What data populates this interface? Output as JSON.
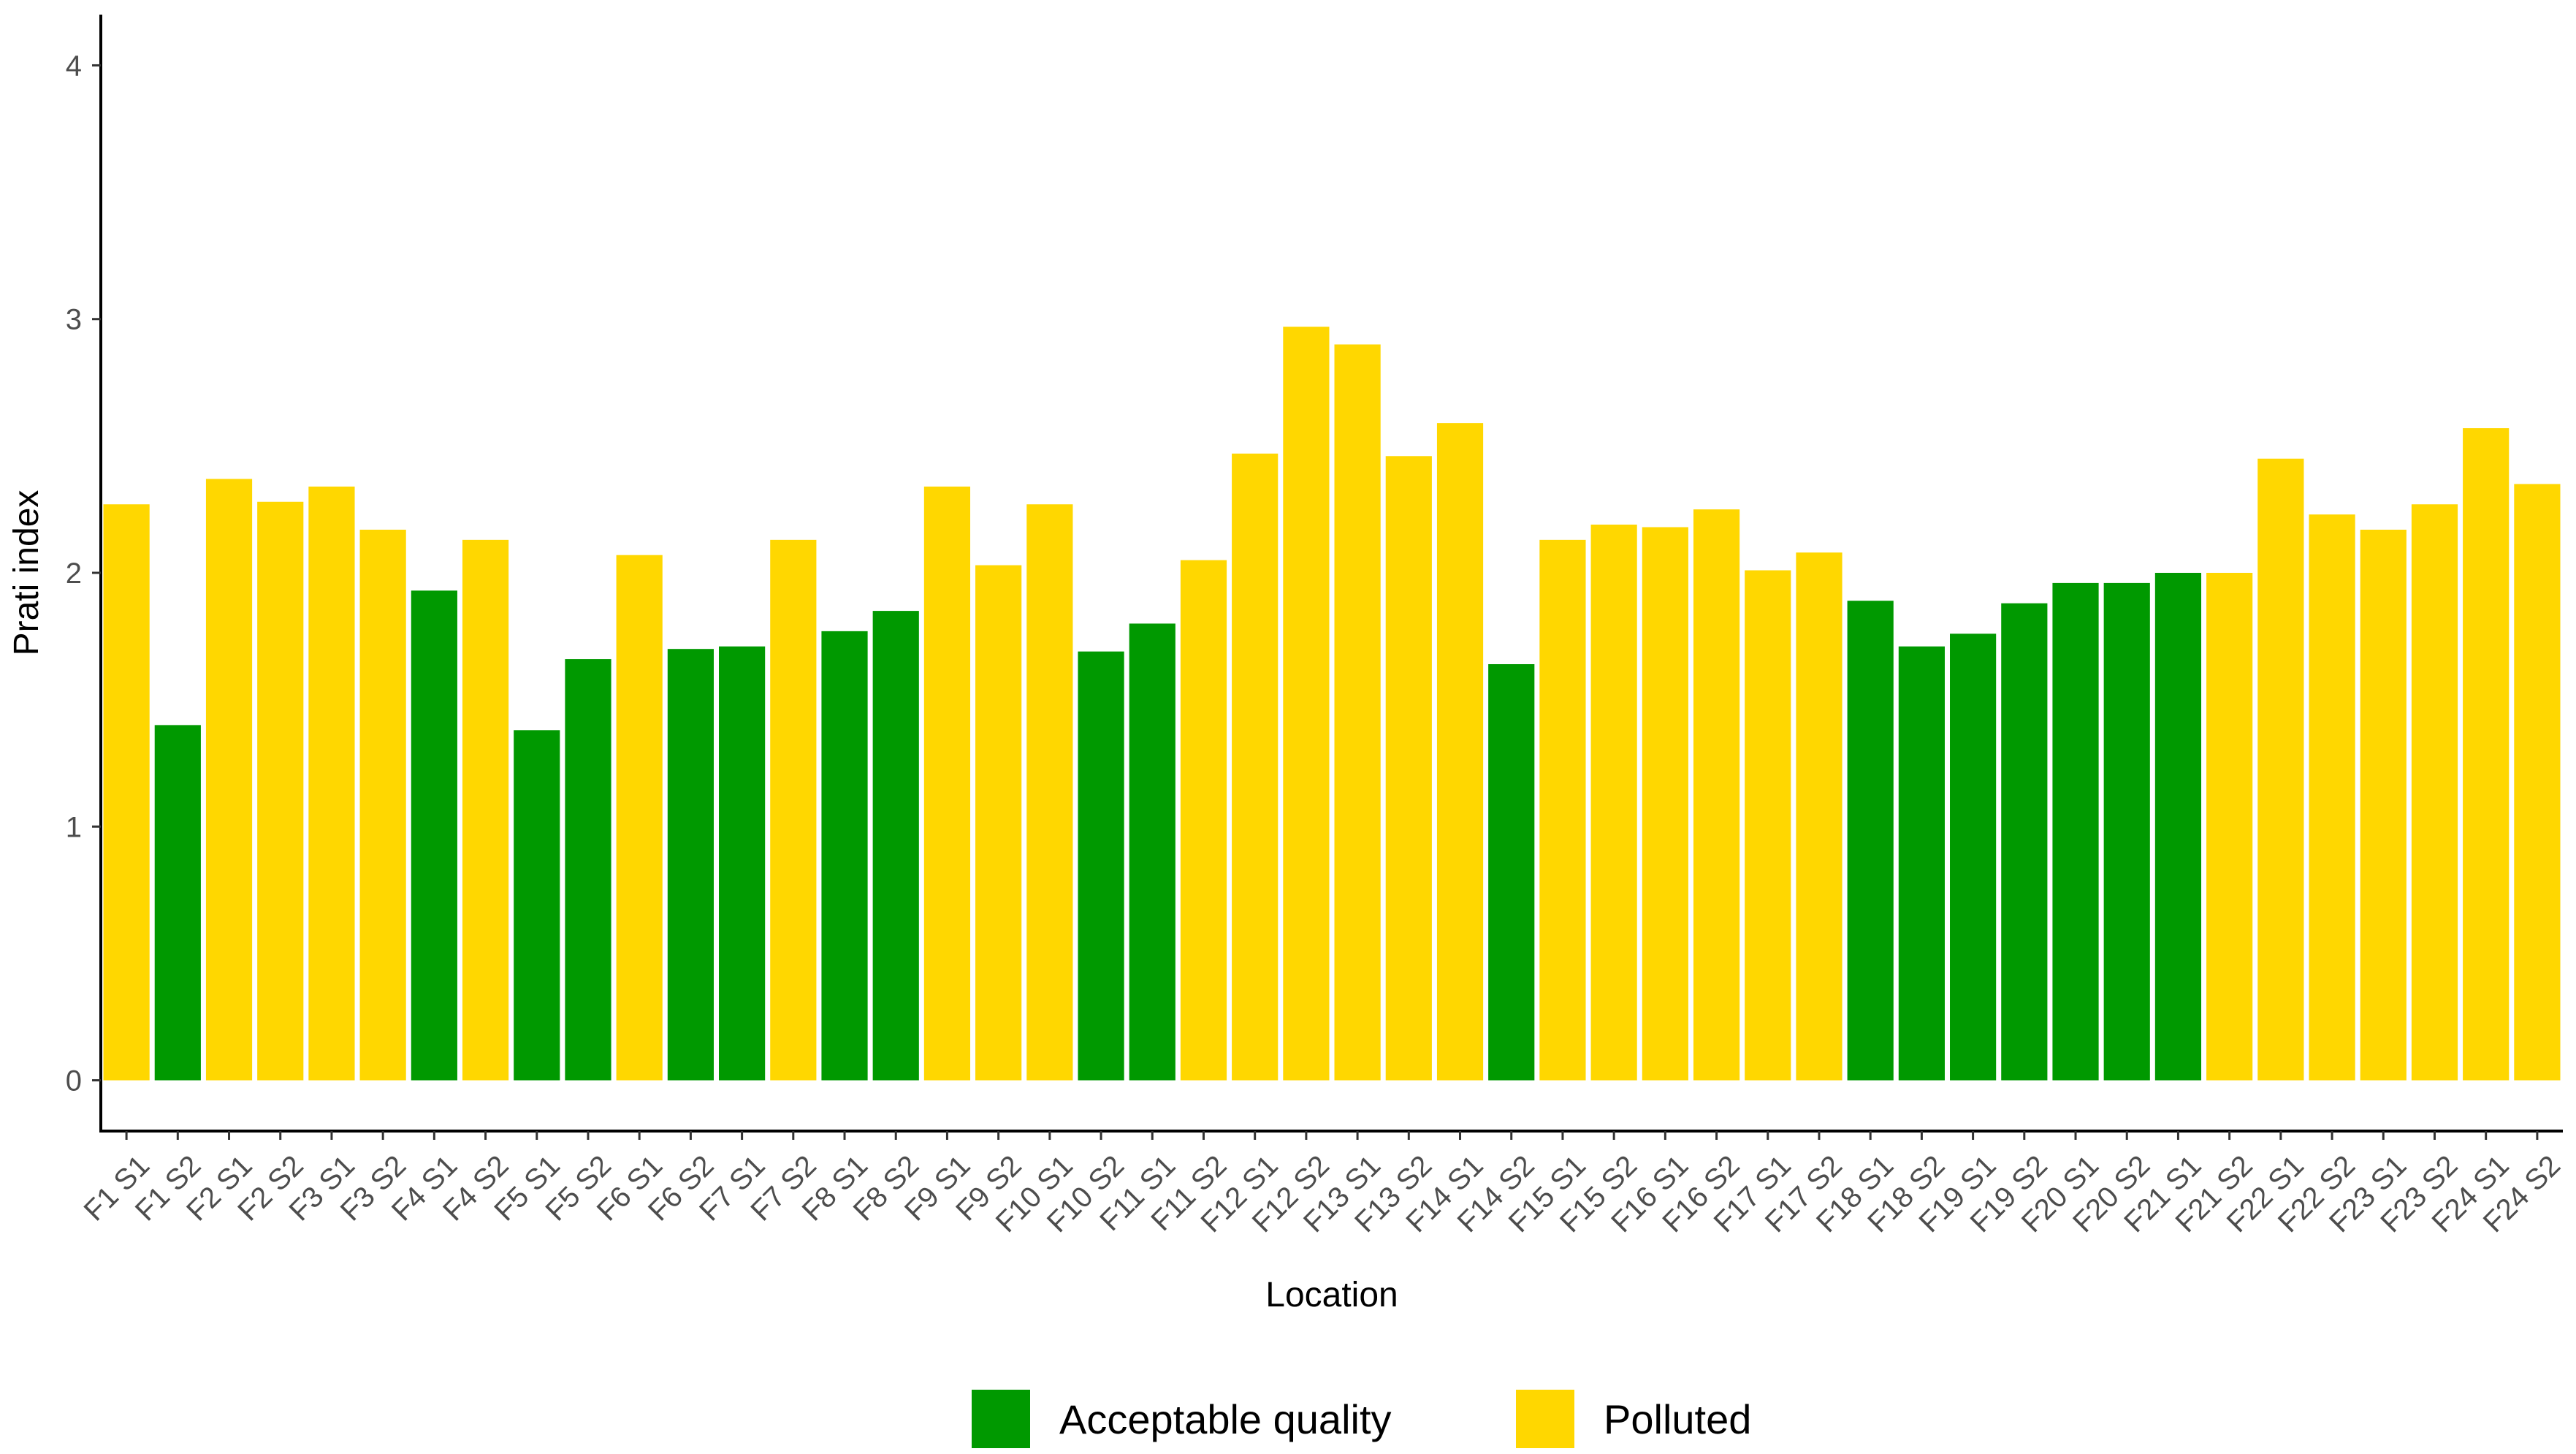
{
  "chart_data": {
    "type": "bar",
    "xlabel": "Location",
    "ylabel": "Prati index",
    "ylim": [
      -0.2,
      4.2
    ],
    "yticks": [
      0,
      1,
      2,
      3,
      4
    ],
    "grid": false,
    "legend_position": "bottom",
    "categories": [
      "F1 S1",
      "F1 S2",
      "F2 S1",
      "F2 S2",
      "F3 S1",
      "F3 S2",
      "F4 S1",
      "F4 S2",
      "F5 S1",
      "F5 S2",
      "F6 S1",
      "F6 S2",
      "F7 S1",
      "F7 S2",
      "F8 S1",
      "F8 S2",
      "F9 S1",
      "F9 S2",
      "F10 S1",
      "F10 S2",
      "F11 S1",
      "F11 S2",
      "F12 S1",
      "F12 S2",
      "F13 S1",
      "F13 S2",
      "F14 S1",
      "F14 S2",
      "F15 S1",
      "F15 S2",
      "F16 S1",
      "F16 S2",
      "F17 S1",
      "F17 S2",
      "F18 S1",
      "F18 S2",
      "F19 S1",
      "F19 S2",
      "F20 S1",
      "F20 S2",
      "F21 S1",
      "F21 S2",
      "F22 S1",
      "F22 S2",
      "F23 S1",
      "F23 S2",
      "F24 S1",
      "F24 S2"
    ],
    "values": [
      2.27,
      1.4,
      2.37,
      2.28,
      2.34,
      2.17,
      1.93,
      2.13,
      1.38,
      1.66,
      2.07,
      1.7,
      1.71,
      2.13,
      1.77,
      1.85,
      2.34,
      2.03,
      2.27,
      1.69,
      1.8,
      2.05,
      2.47,
      2.97,
      2.9,
      2.46,
      2.59,
      1.64,
      2.13,
      2.19,
      2.18,
      2.25,
      2.01,
      2.08,
      1.89,
      1.71,
      1.76,
      1.88,
      1.96,
      1.96,
      2.0,
      2.0,
      2.45,
      2.23,
      2.17,
      2.27,
      2.57,
      2.35
    ],
    "classes": [
      "Polluted",
      "Acceptable quality",
      "Polluted",
      "Polluted",
      "Polluted",
      "Polluted",
      "Acceptable quality",
      "Polluted",
      "Acceptable quality",
      "Acceptable quality",
      "Polluted",
      "Acceptable quality",
      "Acceptable quality",
      "Polluted",
      "Acceptable quality",
      "Acceptable quality",
      "Polluted",
      "Polluted",
      "Polluted",
      "Acceptable quality",
      "Acceptable quality",
      "Polluted",
      "Polluted",
      "Polluted",
      "Polluted",
      "Polluted",
      "Polluted",
      "Acceptable quality",
      "Polluted",
      "Polluted",
      "Polluted",
      "Polluted",
      "Polluted",
      "Polluted",
      "Acceptable quality",
      "Acceptable quality",
      "Acceptable quality",
      "Acceptable quality",
      "Acceptable quality",
      "Acceptable quality",
      "Acceptable quality",
      "Polluted",
      "Polluted",
      "Polluted",
      "Polluted",
      "Polluted",
      "Polluted",
      "Polluted"
    ],
    "legend": [
      {
        "name": "Acceptable quality",
        "color": "#009900"
      },
      {
        "name": "Polluted",
        "color": "#FFD700"
      }
    ]
  }
}
